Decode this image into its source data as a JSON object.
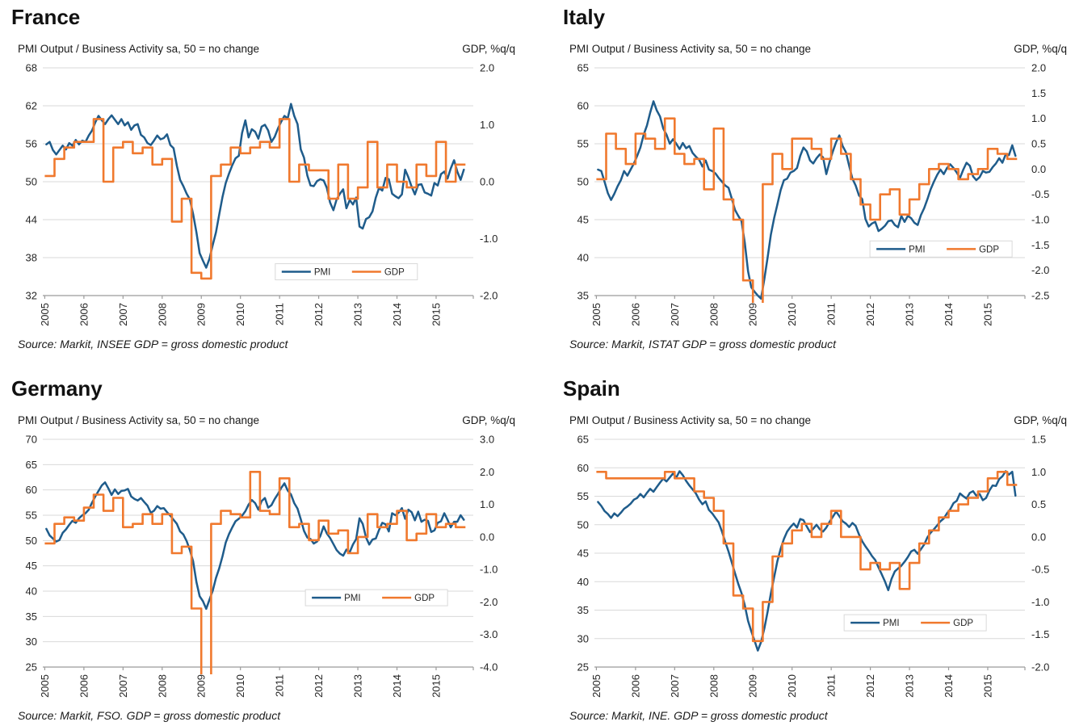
{
  "colors": {
    "pmi": "#1F5C8B",
    "gdp": "#F0792E",
    "grid": "#D9D9D9",
    "axis": "#9B9B9B",
    "legend_border": "#D9D9D9"
  },
  "chart_data": [
    {
      "type": "line",
      "title": "France",
      "left_axis_title": "PMI Output / Business Activity sa, 50 = no change",
      "right_axis_title": "GDP, %q/q",
      "source": "Source: Markit, INSEE GDP = gross domestic product",
      "x_tick_labels": [
        "2005",
        "2006",
        "2007",
        "2008",
        "2009",
        "2010",
        "2011",
        "2012",
        "2013",
        "2014",
        "2015"
      ],
      "left_ticks": [
        68,
        62,
        56,
        50,
        44,
        38,
        32
      ],
      "right_ticks": [
        "2.0",
        "1.0",
        "0.0",
        "-1.0",
        "-2.0"
      ],
      "ylim_left": [
        32,
        68
      ],
      "ylim_right": [
        -2.0,
        2.0
      ],
      "legend": {
        "labels": [
          "PMI",
          "GDP"
        ],
        "x": 0.54,
        "y": 0.86
      },
      "pmi_monthly_start": "2005-01",
      "pmi_monthly": [
        55.9,
        56.3,
        55.0,
        54.3,
        55.0,
        55.7,
        55.1,
        56.1,
        55.7,
        56.6,
        55.9,
        56.5,
        56.3,
        57.3,
        58.1,
        59.4,
        60.4,
        59.7,
        59.1,
        59.9,
        60.5,
        59.8,
        59.1,
        59.9,
        58.9,
        59.4,
        58.2,
        58.9,
        59.1,
        57.4,
        57.0,
        56.1,
        55.8,
        56.5,
        57.3,
        56.7,
        56.9,
        57.5,
        55.8,
        55.3,
        52.5,
        50.3,
        49.3,
        48.1,
        47.2,
        44.9,
        42.0,
        38.7,
        37.5,
        36.4,
        37.8,
        40.0,
        42.0,
        44.8,
        47.6,
        49.8,
        51.3,
        52.6,
        53.7,
        54.1,
        57.7,
        59.7,
        57.0,
        58.3,
        57.9,
        56.8,
        58.7,
        59.0,
        58.1,
        56.3,
        57.1,
        58.4,
        59.5,
        60.4,
        60.0,
        62.3,
        60.4,
        59.1,
        55.1,
        53.8,
        51.0,
        49.4,
        49.3,
        50.1,
        50.4,
        50.2,
        49.0,
        46.7,
        45.5,
        47.2,
        48.1,
        48.8,
        45.8,
        47.1,
        46.4,
        47.5,
        42.9,
        42.6,
        44.1,
        44.4,
        45.3,
        47.5,
        49.0,
        48.6,
        50.6,
        50.4,
        48.1,
        47.7,
        47.4,
        48.0,
        51.9,
        50.7,
        49.2,
        48.0,
        49.5,
        49.6,
        48.3,
        48.1,
        47.8,
        49.8,
        49.4,
        51.2,
        51.6,
        50.5,
        52.1,
        53.4,
        51.6,
        50.3,
        51.9
      ],
      "gdp_quarterly_start": "2005-Q1",
      "gdp_quarterly": [
        0.1,
        0.4,
        0.6,
        0.7,
        0.7,
        1.1,
        0.0,
        0.6,
        0.7,
        0.5,
        0.6,
        0.3,
        0.4,
        -0.7,
        -0.3,
        -1.6,
        -1.7,
        0.1,
        0.3,
        0.6,
        0.5,
        0.6,
        0.7,
        0.6,
        1.1,
        0.0,
        0.3,
        0.2,
        0.2,
        -0.3,
        0.3,
        -0.3,
        -0.1,
        0.7,
        -0.1,
        0.3,
        0.0,
        -0.1,
        0.3,
        0.1,
        0.7,
        0.0,
        0.3
      ]
    },
    {
      "type": "line",
      "title": "Italy",
      "left_axis_title": "PMI Output / Business Activity sa, 50 = no change",
      "right_axis_title": "GDP, %q/q",
      "source": "Source: Markit, ISTAT GDP = gross domestic product",
      "x_tick_labels": [
        "2005",
        "2006",
        "2007",
        "2008",
        "2009",
        "2010",
        "2011",
        "2012",
        "2013",
        "2014",
        "2015"
      ],
      "left_ticks": [
        65,
        60,
        55,
        50,
        45,
        40,
        35
      ],
      "right_ticks": [
        "2.0",
        "1.5",
        "1.0",
        "0.5",
        "0.0",
        "-0.5",
        "-1.0",
        "-1.5",
        "-2.0",
        "-2.5"
      ],
      "ylim_left": [
        35,
        65
      ],
      "ylim_right": [
        -2.5,
        2.0
      ],
      "legend": {
        "labels": [
          "PMI",
          "GDP"
        ],
        "x": 0.64,
        "y": 0.76
      },
      "pmi_monthly_start": "2005-01",
      "pmi_monthly": [
        51.6,
        51.4,
        50.0,
        48.5,
        47.6,
        48.4,
        49.4,
        50.2,
        51.4,
        50.8,
        51.6,
        52.4,
        53.4,
        54.5,
        56.2,
        57.4,
        59.1,
        60.6,
        59.4,
        58.6,
        57.0,
        56.2,
        55.0,
        55.6,
        55.0,
        54.3,
        55.1,
        54.4,
        54.7,
        53.8,
        53.3,
        52.9,
        52.0,
        52.8,
        51.6,
        51.4,
        51.1,
        50.5,
        50.0,
        49.5,
        49.2,
        47.8,
        46.3,
        45.5,
        44.8,
        42.0,
        38.2,
        36.1,
        35.5,
        35.0,
        34.6,
        37.2,
        40.0,
        43.0,
        45.2,
        47.0,
        48.9,
        50.2,
        50.4,
        51.2,
        51.4,
        51.8,
        53.4,
        54.5,
        54.0,
        52.8,
        52.4,
        53.1,
        53.6,
        53.2,
        51.0,
        52.6,
        54.0,
        55.2,
        56.1,
        54.7,
        53.9,
        52.1,
        50.4,
        49.5,
        48.2,
        47.7,
        45.1,
        44.1,
        44.5,
        44.7,
        43.5,
        43.8,
        44.2,
        44.8,
        44.9,
        44.3,
        44.0,
        45.5,
        44.7,
        45.5,
        45.2,
        44.6,
        44.3,
        45.6,
        46.5,
        47.7,
        49.0,
        50.0,
        50.9,
        51.6,
        51.0,
        51.8,
        52.3,
        51.8,
        51.2,
        50.5,
        51.6,
        52.5,
        52.1,
        50.7,
        50.2,
        50.6,
        51.4,
        51.2,
        51.3,
        51.9,
        52.4,
        53.1,
        52.5,
        53.6,
        53.5,
        54.8,
        53.4
      ],
      "gdp_quarterly_start": "2005-Q1",
      "gdp_quarterly": [
        -0.2,
        0.7,
        0.4,
        0.1,
        0.7,
        0.6,
        0.4,
        1.0,
        0.3,
        0.1,
        0.2,
        -0.4,
        0.8,
        -0.6,
        -1.0,
        -2.2,
        -2.7,
        -0.3,
        0.3,
        0.0,
        0.6,
        0.6,
        0.4,
        0.2,
        0.6,
        0.3,
        -0.2,
        -0.7,
        -1.0,
        -0.5,
        -0.4,
        -0.9,
        -0.6,
        -0.3,
        0.0,
        0.1,
        0.0,
        -0.2,
        -0.1,
        0.0,
        0.4,
        0.3,
        0.2
      ]
    },
    {
      "type": "line",
      "title": "Germany",
      "left_axis_title": "PMI Output / Business Activity sa, 50 = no change",
      "right_axis_title": "GDP, %q/q",
      "source": "Source: Markit, FSO. GDP = gross domestic product",
      "x_tick_labels": [
        "2005",
        "2006",
        "2007",
        "2008",
        "2009",
        "2010",
        "2011",
        "2012",
        "2013",
        "2014",
        "2015"
      ],
      "left_ticks": [
        70,
        65,
        60,
        55,
        50,
        45,
        40,
        35,
        30,
        25
      ],
      "right_ticks": [
        "3.0",
        "2.0",
        "1.0",
        "0.0",
        "-1.0",
        "-2.0",
        "-3.0",
        "-4.0"
      ],
      "ylim_left": [
        25,
        70
      ],
      "ylim_right": [
        -4.0,
        3.0
      ],
      "legend": {
        "labels": [
          "PMI",
          "GDP"
        ],
        "x": 0.61,
        "y": 0.66
      },
      "pmi_monthly_start": "2005-01",
      "pmi_monthly": [
        52.3,
        51.0,
        50.4,
        49.8,
        50.1,
        51.5,
        52.2,
        53.1,
        53.9,
        53.5,
        54.4,
        55.0,
        55.4,
        56.1,
        57.5,
        58.7,
        59.8,
        60.9,
        61.5,
        60.3,
        59.0,
        60.1,
        59.2,
        59.8,
        59.9,
        60.2,
        58.7,
        58.2,
        57.9,
        58.4,
        57.6,
        56.9,
        55.5,
        55.9,
        56.8,
        56.3,
        56.4,
        55.6,
        54.9,
        54.1,
        53.3,
        51.8,
        51.2,
        49.9,
        48.1,
        45.9,
        41.8,
        39.0,
        38.0,
        36.5,
        38.3,
        40.1,
        42.6,
        44.5,
        46.9,
        49.6,
        51.3,
        52.6,
        53.8,
        54.3,
        54.9,
        55.8,
        57.1,
        58.0,
        57.4,
        56.1,
        57.8,
        58.4,
        56.5,
        57.0,
        58.2,
        59.2,
        60.4,
        61.3,
        59.9,
        59.1,
        57.4,
        56.3,
        54.2,
        51.9,
        50.6,
        50.3,
        49.4,
        49.8,
        50.9,
        52.8,
        51.4,
        50.5,
        49.3,
        48.1,
        47.4,
        47.0,
        48.2,
        47.7,
        49.2,
        50.3,
        54.4,
        53.3,
        50.6,
        49.2,
        50.2,
        50.4,
        52.1,
        53.5,
        53.2,
        51.8,
        55.4,
        55.0,
        55.5,
        56.4,
        54.3,
        56.1,
        55.6,
        54.0,
        55.7,
        53.7,
        54.1,
        53.9,
        51.7,
        52.0,
        53.5,
        53.8,
        55.4,
        54.1,
        52.6,
        53.7,
        53.7,
        55.0,
        54.1
      ],
      "gdp_quarterly_start": "2005-Q1",
      "gdp_quarterly": [
        -0.2,
        0.4,
        0.6,
        0.5,
        0.9,
        1.3,
        0.8,
        1.2,
        0.3,
        0.4,
        0.7,
        0.4,
        0.7,
        -0.5,
        -0.3,
        -2.2,
        -4.5,
        0.4,
        0.8,
        0.7,
        0.6,
        2.0,
        0.8,
        0.7,
        1.8,
        0.3,
        0.4,
        -0.1,
        0.5,
        0.1,
        0.2,
        -0.5,
        0.0,
        0.7,
        0.3,
        0.4,
        0.8,
        -0.1,
        0.1,
        0.7,
        0.3,
        0.4,
        0.3
      ]
    },
    {
      "type": "line",
      "title": "Spain",
      "left_axis_title": "PMI Output / Business Activity sa, 50 = no change",
      "right_axis_title": "GDP, %q/q",
      "source": "Source: Markit, INE. GDP = gross domestic product",
      "x_tick_labels": [
        "2005",
        "2006",
        "2007",
        "2008",
        "2009",
        "2010",
        "2011",
        "2012",
        "2013",
        "2014",
        "2015"
      ],
      "left_ticks": [
        65,
        60,
        55,
        50,
        45,
        40,
        35,
        30,
        25
      ],
      "right_ticks": [
        "1.5",
        "1.0",
        "0.5",
        "0.0",
        "-0.5",
        "-1.0",
        "-1.5",
        "-2.0"
      ],
      "ylim_left": [
        25,
        65
      ],
      "ylim_right": [
        -2.0,
        1.5
      ],
      "legend": {
        "labels": [
          "PMI",
          "GDP"
        ],
        "x": 0.58,
        "y": 0.77
      },
      "pmi_monthly_start": "2005-01",
      "pmi_monthly": [
        54.0,
        53.3,
        52.4,
        51.9,
        51.2,
        52.0,
        51.5,
        52.1,
        52.8,
        53.2,
        53.7,
        54.4,
        54.7,
        55.4,
        54.8,
        55.6,
        56.3,
        55.8,
        56.6,
        57.4,
        58.1,
        57.6,
        58.3,
        59.0,
        58.3,
        59.4,
        58.7,
        57.7,
        56.9,
        56.2,
        55.5,
        54.4,
        53.6,
        54.1,
        52.6,
        52.0,
        51.2,
        50.4,
        48.8,
        47.0,
        45.3,
        43.4,
        41.5,
        39.6,
        38.0,
        35.9,
        33.1,
        31.3,
        29.6,
        27.9,
        29.4,
        31.8,
        34.7,
        37.9,
        40.8,
        43.6,
        45.8,
        47.5,
        48.8,
        49.6,
        50.2,
        49.5,
        51.0,
        50.8,
        49.7,
        48.7,
        49.3,
        50.0,
        49.2,
        48.8,
        49.5,
        50.5,
        51.4,
        52.3,
        51.5,
        50.6,
        50.2,
        49.6,
        50.3,
        49.8,
        48.3,
        47.1,
        46.2,
        45.4,
        44.5,
        43.8,
        42.5,
        41.3,
        40.0,
        38.5,
        40.5,
        41.8,
        42.3,
        42.8,
        43.5,
        44.3,
        45.3,
        45.6,
        44.9,
        45.7,
        46.5,
        47.8,
        48.6,
        49.2,
        49.9,
        50.6,
        51.1,
        52.0,
        52.7,
        53.8,
        54.2,
        55.5,
        55.0,
        54.6,
        55.6,
        55.9,
        55.1,
        55.4,
        54.3,
        54.7,
        56.0,
        56.9,
        56.8,
        58.0,
        58.5,
        59.4,
        58.8,
        59.3,
        55.1
      ],
      "gdp_quarterly_start": "2005-Q1",
      "gdp_quarterly": [
        1.0,
        0.9,
        0.9,
        0.9,
        0.9,
        0.9,
        0.9,
        1.0,
        0.9,
        0.9,
        0.7,
        0.6,
        0.4,
        -0.1,
        -0.9,
        -1.1,
        -1.6,
        -1.0,
        -0.3,
        -0.1,
        0.1,
        0.2,
        0.0,
        0.2,
        0.4,
        0.0,
        0.0,
        -0.5,
        -0.4,
        -0.5,
        -0.4,
        -0.8,
        -0.4,
        -0.1,
        0.1,
        0.3,
        0.4,
        0.5,
        0.6,
        0.7,
        0.9,
        1.0,
        0.8
      ]
    }
  ]
}
